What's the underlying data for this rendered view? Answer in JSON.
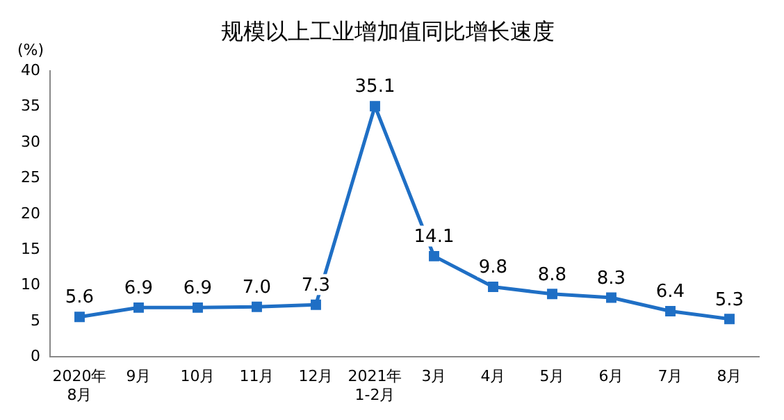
{
  "chart_data": {
    "type": "line",
    "title": "规模以上工业增加值同比增长速度",
    "ylabel": "(%)",
    "categories": [
      "2020年\n8月",
      "9月",
      "10月",
      "11月",
      "12月",
      "2021年\n1-2月",
      "3月",
      "4月",
      "5月",
      "6月",
      "7月",
      "8月"
    ],
    "series": [
      {
        "color": "#1f6fc5",
        "values": [
          5.6,
          6.9,
          6.9,
          7.0,
          7.3,
          35.1,
          14.1,
          9.8,
          8.8,
          8.3,
          6.4,
          5.3
        ],
        "value_labels": [
          "5.6",
          "6.9",
          "6.9",
          "7.0",
          "7.3",
          "35.1",
          "14.1",
          "9.8",
          "8.8",
          "8.3",
          "6.4",
          "5.3"
        ]
      }
    ],
    "ylim": [
      0,
      40
    ],
    "yticks": [
      0,
      5,
      10,
      15,
      20,
      25,
      30,
      35,
      40
    ],
    "grid": false,
    "legend": false,
    "marker": "square",
    "line_style": "solid"
  }
}
